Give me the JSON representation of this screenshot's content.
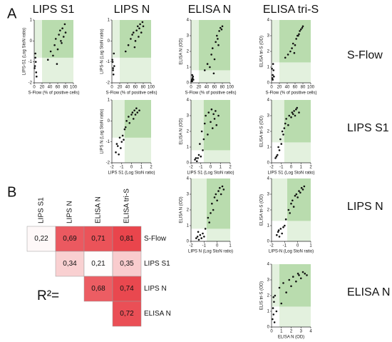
{
  "figure": {
    "panel_labels": [
      "A",
      "B"
    ],
    "column_headers": [
      "LIPS S1",
      "LIPS N",
      "ELISA N",
      "ELISA tri-S"
    ],
    "row_labels": [
      "S-Flow",
      "LIPS S1",
      "LIPS N",
      "ELISA N"
    ],
    "r2_label": "R²="
  },
  "chart_data": [
    {
      "type": "scatter",
      "xlabel": "S-Flow (% of positive cells)",
      "ylabel": "LIPS-S1 (Log StoN ratio)",
      "xlim": [
        0,
        100
      ],
      "xticks": [
        0,
        20,
        40,
        60,
        80,
        100
      ],
      "ylim": [
        -2,
        1
      ],
      "yticks": [
        -2,
        -1,
        0,
        1
      ],
      "x_threshold": 20,
      "y_threshold": -0.8,
      "color": "#111111",
      "x": [
        2,
        3,
        5,
        4,
        6,
        1,
        3,
        35,
        42,
        48,
        52,
        55,
        60,
        63,
        66,
        70,
        72,
        75,
        78,
        80,
        58,
        68
      ],
      "y": [
        -1.2,
        -0.8,
        -1.5,
        -1.0,
        -1.7,
        -1.3,
        -0.6,
        -0.9,
        -0.5,
        -0.7,
        -0.2,
        0.1,
        -0.4,
        0.3,
        0.5,
        -0.1,
        0.6,
        0.2,
        0.8,
        0.4,
        -1.1,
        0.0
      ]
    },
    {
      "type": "scatter",
      "xlabel": "S-Flow (% of positive cells)",
      "ylabel": "LIPS-N (Log StoN ratio)",
      "xlim": [
        0,
        100
      ],
      "xticks": [
        0,
        20,
        40,
        60,
        80,
        100
      ],
      "ylim": [
        -2,
        1
      ],
      "yticks": [
        -2,
        -1,
        0,
        1
      ],
      "x_threshold": 20,
      "y_threshold": -0.8,
      "color": "#111111",
      "x": [
        2,
        3,
        5,
        4,
        6,
        1,
        3,
        35,
        42,
        48,
        52,
        55,
        60,
        63,
        66,
        70,
        72,
        75,
        78,
        80,
        58,
        68
      ],
      "y": [
        -1.0,
        -1.4,
        -0.6,
        -1.6,
        -1.2,
        -0.9,
        -1.3,
        -0.5,
        -0.2,
        0.1,
        0.3,
        0.4,
        0.0,
        0.5,
        0.7,
        0.6,
        0.8,
        0.4,
        0.9,
        0.7,
        -0.3,
        0.2
      ]
    },
    {
      "type": "scatter",
      "xlabel": "S-Flow (% of positive cells)",
      "ylabel": "ELISA N (OD)",
      "xlim": [
        0,
        100
      ],
      "xticks": [
        0,
        20,
        40,
        60,
        80,
        100
      ],
      "ylim": [
        0,
        4
      ],
      "yticks": [
        0,
        1,
        2,
        3,
        4
      ],
      "x_threshold": 20,
      "y_threshold": 0.8,
      "color": "#111111",
      "x": [
        2,
        3,
        5,
        4,
        6,
        1,
        3,
        35,
        42,
        48,
        52,
        55,
        60,
        63,
        66,
        70,
        72,
        75,
        78,
        80,
        58,
        68
      ],
      "y": [
        0.2,
        0.1,
        0.4,
        0.3,
        0.2,
        0.1,
        0.5,
        0.8,
        1.2,
        1.0,
        1.8,
        2.2,
        1.5,
        2.6,
        3.0,
        2.4,
        3.3,
        3.5,
        3.4,
        3.6,
        0.6,
        2.8
      ]
    },
    {
      "type": "scatter",
      "xlabel": "S-Flow (% of positive cells)",
      "ylabel": "ELISA tri-S (OD)",
      "xlim": [
        0,
        100
      ],
      "xticks": [
        0,
        20,
        40,
        60,
        80,
        100
      ],
      "ylim": [
        0,
        4
      ],
      "yticks": [
        0,
        1,
        2,
        3,
        4
      ],
      "x_threshold": 20,
      "y_threshold": 1.3,
      "color": "#111111",
      "x": [
        2,
        3,
        5,
        4,
        6,
        1,
        3,
        35,
        42,
        48,
        52,
        55,
        60,
        63,
        66,
        70,
        72,
        75,
        78,
        80,
        58,
        68
      ],
      "y": [
        0.3,
        0.5,
        0.8,
        1.2,
        0.4,
        0.9,
        0.2,
        1.6,
        1.8,
        2.0,
        2.2,
        2.5,
        2.4,
        2.8,
        3.0,
        3.1,
        3.3,
        3.4,
        3.5,
        3.6,
        1.9,
        3.0
      ]
    },
    {
      "type": "scatter",
      "xlabel": "LIPS S1 (Log StoN ratio)",
      "ylabel": "LIPS N (Log StoN ratio)",
      "xlim": [
        -2,
        2
      ],
      "xticks": [
        -2,
        -1,
        0,
        1,
        2
      ],
      "ylim": [
        -2,
        1
      ],
      "yticks": [
        -2,
        -1,
        0,
        1
      ],
      "x_threshold": -0.7,
      "y_threshold": -0.8,
      "color": "#111111",
      "x": [
        -1.6,
        -1.4,
        -1.3,
        -1.2,
        -1.1,
        -1.0,
        -0.9,
        -0.8,
        -0.6,
        -0.5,
        -0.3,
        -0.2,
        0,
        0.1,
        0.2,
        0.3,
        0.4,
        0.5,
        0.6,
        0.8,
        -1.5,
        -0.7
      ],
      "y": [
        -1.5,
        -1.2,
        -1.6,
        -0.8,
        -1.3,
        -1.0,
        -0.7,
        -0.9,
        -0.3,
        0.0,
        0.2,
        -0.1,
        0.3,
        0.4,
        0.1,
        0.5,
        0.3,
        0.6,
        0.4,
        0.5,
        -1.1,
        -0.4
      ]
    },
    {
      "type": "scatter",
      "xlabel": "LIPS S1 (Log StoN ratio)",
      "ylabel": "ELISA N (OD)",
      "xlim": [
        -2,
        2
      ],
      "xticks": [
        -2,
        -1,
        0,
        1,
        2
      ],
      "ylim": [
        0,
        4
      ],
      "yticks": [
        0,
        1,
        2,
        3,
        4
      ],
      "x_threshold": -0.7,
      "y_threshold": 0.8,
      "color": "#111111",
      "x": [
        -1.6,
        -1.4,
        -1.3,
        -1.2,
        -1.1,
        -1.0,
        -0.9,
        -0.8,
        -0.6,
        -0.5,
        -0.3,
        -0.2,
        0,
        0.1,
        0.2,
        0.3,
        0.4,
        0.5,
        0.6,
        0.8,
        -1.5,
        -0.7
      ],
      "y": [
        0.2,
        0.1,
        0.3,
        0.5,
        1.2,
        0.4,
        2.0,
        0.8,
        2.5,
        3.0,
        1.8,
        3.2,
        2.6,
        3.4,
        2.2,
        3.1,
        2.8,
        3.3,
        2.4,
        3.0,
        0.3,
        1.5
      ]
    },
    {
      "type": "scatter",
      "xlabel": "LIPS S1 (Log StoN ratio)",
      "ylabel": "ELISA tri-S (OD)",
      "xlim": [
        -2,
        2
      ],
      "xticks": [
        -2,
        -1,
        0,
        1,
        2
      ],
      "ylim": [
        0,
        4
      ],
      "yticks": [
        0,
        1,
        2,
        3,
        4
      ],
      "x_threshold": -0.7,
      "y_threshold": 1.3,
      "color": "#111111",
      "x": [
        -1.6,
        -1.4,
        -1.3,
        -1.2,
        -1.1,
        -1.0,
        -0.9,
        -0.8,
        -0.6,
        -0.5,
        -0.3,
        -0.2,
        0,
        0.1,
        0.2,
        0.3,
        0.4,
        0.5,
        0.6,
        0.8,
        -1.5,
        -0.7
      ],
      "y": [
        0.3,
        0.5,
        1.0,
        0.8,
        1.5,
        1.2,
        2.0,
        1.8,
        2.5,
        2.8,
        2.4,
        3.0,
        2.9,
        3.2,
        3.1,
        3.3,
        3.0,
        3.4,
        3.5,
        3.2,
        0.4,
        2.2
      ]
    },
    {
      "type": "scatter",
      "xlabel": "LIPS N (Log StoN ratio)",
      "ylabel": "ELISA N (OD)",
      "xlim": [
        -2,
        1
      ],
      "xticks": [
        -2,
        -1,
        0,
        1
      ],
      "ylim": [
        0,
        4
      ],
      "yticks": [
        0,
        1,
        2,
        3,
        4
      ],
      "x_threshold": -0.8,
      "y_threshold": 0.8,
      "color": "#111111",
      "x": [
        -1.6,
        -1.5,
        -1.4,
        -1.3,
        -1.2,
        -1.1,
        -1.0,
        -0.9,
        -0.7,
        -0.5,
        -0.4,
        -0.3,
        -0.2,
        -0.1,
        0,
        0.1,
        0.2,
        0.3,
        0.4,
        0.5,
        -1.45,
        -0.6
      ],
      "y": [
        0.2,
        0.3,
        0.1,
        0.4,
        0.2,
        0.5,
        0.3,
        0.8,
        1.5,
        1.8,
        2.4,
        2.0,
        2.8,
        3.0,
        2.6,
        3.2,
        3.4,
        3.0,
        3.5,
        3.3,
        0.6,
        1.2
      ]
    },
    {
      "type": "scatter",
      "xlabel": "LIPS-N (Log StoN ratio)",
      "ylabel": "ELISA tri-S (OD)",
      "xlim": [
        -2,
        1
      ],
      "xticks": [
        -2,
        -1,
        0,
        1
      ],
      "ylim": [
        0,
        4
      ],
      "yticks": [
        0,
        1,
        2,
        3,
        4
      ],
      "x_threshold": -0.8,
      "y_threshold": 1.3,
      "color": "#111111",
      "x": [
        -1.6,
        -1.5,
        -1.4,
        -1.3,
        -1.2,
        -1.1,
        -1.0,
        -0.9,
        -0.7,
        -0.5,
        -0.4,
        -0.3,
        -0.2,
        -0.1,
        0,
        0.1,
        0.2,
        0.3,
        0.4,
        0.5,
        -1.45,
        -0.6
      ],
      "y": [
        0.4,
        0.6,
        0.3,
        0.8,
        0.5,
        0.9,
        1.0,
        1.4,
        2.0,
        2.4,
        2.6,
        2.2,
        2.9,
        3.0,
        2.8,
        3.2,
        3.1,
        3.4,
        3.3,
        3.5,
        0.7,
        1.8
      ]
    },
    {
      "type": "scatter",
      "xlabel": "ELISA N (OD)",
      "ylabel": "ELIS tri-S (OD)",
      "xlim": [
        0,
        4
      ],
      "xticks": [
        0,
        1,
        2,
        3,
        4
      ],
      "ylim": [
        0,
        4
      ],
      "yticks": [
        0,
        1,
        2,
        3,
        4
      ],
      "x_threshold": 0.8,
      "y_threshold": 1.3,
      "color": "#111111",
      "x": [
        0.1,
        0.15,
        0.2,
        0.25,
        0.3,
        0.35,
        0.5,
        0.8,
        1.0,
        1.2,
        1.5,
        1.8,
        2.0,
        2.2,
        2.5,
        2.8,
        3.0,
        3.2,
        3.4,
        3.6,
        0.2,
        2.7
      ],
      "y": [
        0.5,
        1.2,
        0.8,
        1.6,
        0.3,
        2.0,
        1.0,
        2.5,
        1.5,
        2.8,
        2.2,
        3.0,
        2.6,
        3.2,
        2.9,
        3.3,
        3.1,
        3.5,
        3.4,
        3.3,
        1.9,
        3.4
      ]
    },
    {
      "type": "heatmap",
      "columns": [
        "LIPS S1",
        "LIPS N",
        "ELISA N",
        "ELISA tri-S"
      ],
      "rows": [
        "S-Flow",
        "LIPS S1",
        "LIPS N",
        "ELISA N"
      ],
      "color": "#e9454c",
      "values": [
        [
          0.22,
          0.69,
          0.71,
          0.81
        ],
        [
          null,
          0.34,
          0.21,
          0.35
        ],
        [
          null,
          null,
          0.68,
          0.74
        ],
        [
          null,
          null,
          null,
          0.72
        ]
      ],
      "value_labels": [
        [
          "0,22",
          "0,69",
          "0,71",
          "0,81"
        ],
        [
          null,
          "0,34",
          "0,21",
          "0,35"
        ],
        [
          null,
          null,
          "0,68",
          "0,74"
        ],
        [
          null,
          null,
          null,
          "0,72"
        ]
      ]
    }
  ]
}
